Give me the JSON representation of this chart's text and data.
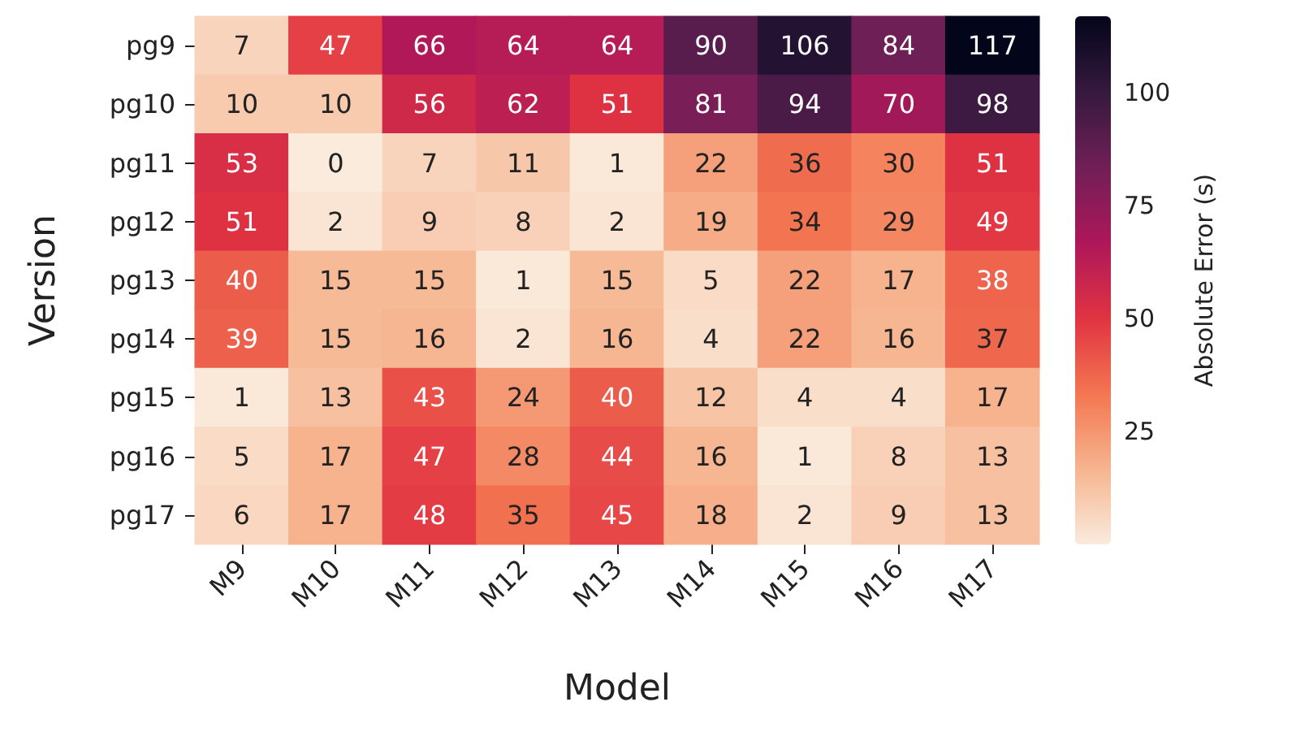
{
  "chart_data": {
    "type": "heatmap",
    "xlabel": "Model",
    "ylabel": "Version",
    "clabel": "Absolute Error (s)",
    "categories": [
      "M9",
      "M10",
      "M11",
      "M12",
      "M13",
      "M14",
      "M15",
      "M16",
      "M17"
    ],
    "y_categories": [
      "pg9",
      "pg10",
      "pg11",
      "pg12",
      "pg13",
      "pg14",
      "pg15",
      "pg16",
      "pg17"
    ],
    "cells": [
      [
        7,
        47,
        66,
        64,
        64,
        90,
        106,
        84,
        117
      ],
      [
        10,
        10,
        56,
        62,
        51,
        81,
        94,
        70,
        98
      ],
      [
        53,
        0,
        7,
        11,
        1,
        22,
        36,
        30,
        51
      ],
      [
        51,
        2,
        9,
        8,
        2,
        19,
        34,
        29,
        49
      ],
      [
        40,
        15,
        15,
        1,
        15,
        5,
        22,
        17,
        38
      ],
      [
        39,
        15,
        16,
        2,
        16,
        4,
        22,
        16,
        37
      ],
      [
        1,
        13,
        43,
        24,
        40,
        12,
        4,
        4,
        17
      ],
      [
        5,
        17,
        47,
        28,
        44,
        16,
        1,
        8,
        13
      ],
      [
        6,
        17,
        48,
        35,
        45,
        18,
        2,
        9,
        13
      ]
    ],
    "clim": [
      0,
      117
    ],
    "cticks": [
      25,
      50,
      75,
      100
    ],
    "data_labels": true
  }
}
